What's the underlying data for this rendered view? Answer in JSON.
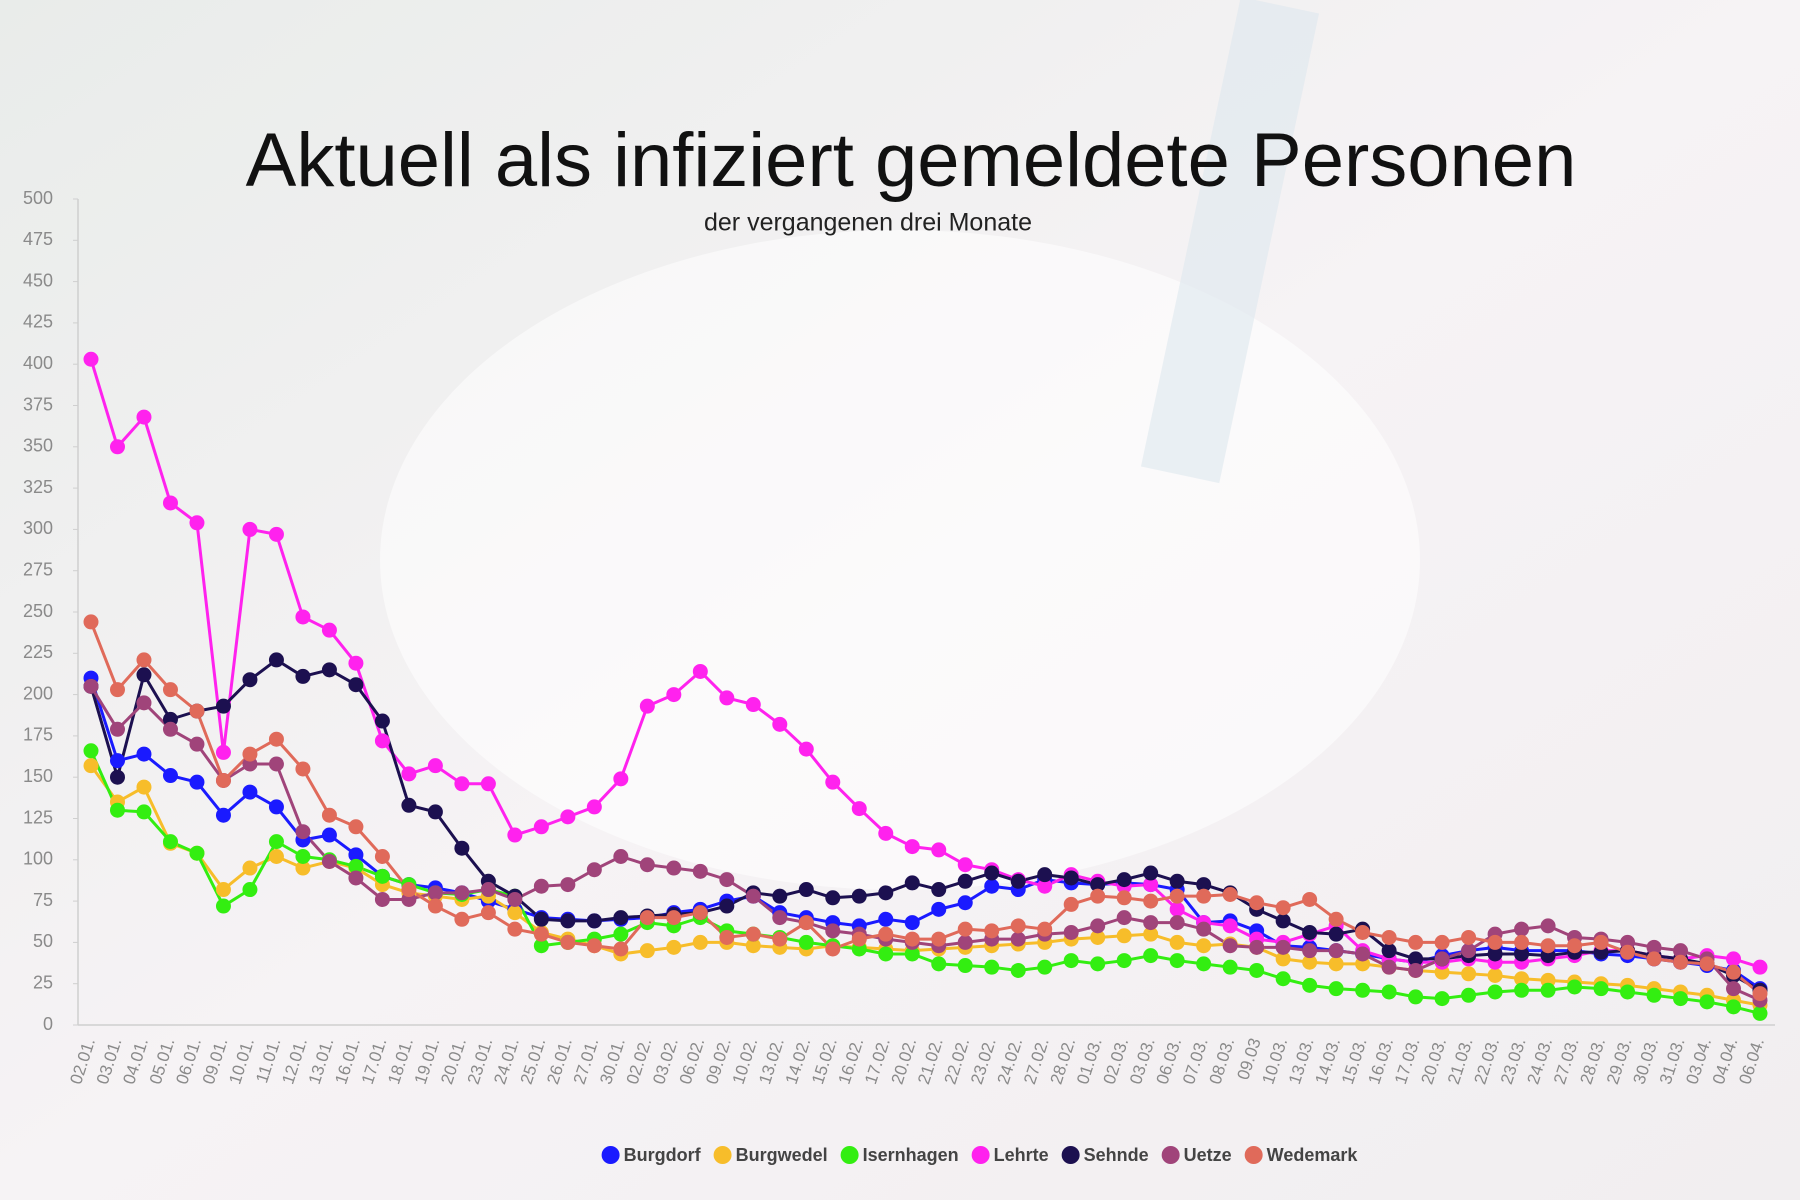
{
  "chart_data": {
    "type": "line",
    "title": "Aktuell als infiziert gemeldete Personen",
    "subtitle": "der vergangenen drei Monate",
    "categories": [
      "02.01.",
      "03.01.",
      "04.01.",
      "05.01.",
      "06.01.",
      "09.01.",
      "10.01.",
      "11.01.",
      "12.01.",
      "13.01.",
      "16.01.",
      "17.01.",
      "18.01.",
      "19.01.",
      "20.01.",
      "23.01.",
      "24.01.",
      "25.01.",
      "26.01.",
      "27.01.",
      "30.01.",
      "02.02.",
      "03.02.",
      "06.02.",
      "09.02.",
      "10.02.",
      "13.02.",
      "14.02.",
      "15.02.",
      "16.02.",
      "17.02.",
      "20.02.",
      "21.02.",
      "22.02.",
      "23.02.",
      "24.02.",
      "27.02.",
      "28.02.",
      "01.03.",
      "02.03.",
      "03.03.",
      "06.03.",
      "07.03.",
      "08.03.",
      "09.03",
      "10.03.",
      "13.03.",
      "14.03.",
      "15.03.",
      "16.03.",
      "17.03.",
      "20.03.",
      "21.03.",
      "22.03.",
      "23.03.",
      "24.03.",
      "27.03.",
      "28.03.",
      "29.03.",
      "30.03.",
      "31.03.",
      "03.04.",
      "04.04.",
      "06.04."
    ],
    "series": [
      {
        "name": "Burgdorf",
        "color": "#1a1aff",
        "values": [
          210,
          160,
          164,
          151,
          147,
          127,
          141,
          132,
          112,
          115,
          103,
          90,
          85,
          83,
          80,
          75,
          70,
          65,
          64,
          63,
          64,
          65,
          68,
          70,
          75,
          78,
          68,
          65,
          62,
          60,
          64,
          62,
          70,
          74,
          84,
          82,
          88,
          86,
          85,
          86,
          85,
          82,
          62,
          63,
          57,
          48,
          47,
          45,
          43,
          40,
          38,
          42,
          45,
          47,
          45,
          45,
          45,
          43,
          42,
          40,
          38,
          36,
          33,
          22
        ]
      },
      {
        "name": "Burgwedel",
        "color": "#f7bd2a",
        "values": [
          157,
          135,
          144,
          110,
          104,
          82,
          95,
          102,
          95,
          99,
          95,
          85,
          80,
          78,
          76,
          78,
          68,
          56,
          52,
          48,
          43,
          45,
          47,
          50,
          50,
          48,
          47,
          46,
          48,
          47,
          46,
          45,
          46,
          47,
          48,
          49,
          50,
          52,
          53,
          54,
          55,
          50,
          48,
          49,
          47,
          40,
          38,
          37,
          37,
          35,
          33,
          32,
          31,
          30,
          28,
          27,
          26,
          25,
          24,
          22,
          20,
          18,
          15,
          12
        ]
      },
      {
        "name": "Isernhagen",
        "color": "#33ee11",
        "values": [
          166,
          130,
          129,
          111,
          104,
          72,
          82,
          111,
          102,
          100,
          96,
          90,
          85,
          80,
          79,
          82,
          78,
          48,
          50,
          52,
          55,
          62,
          60,
          65,
          57,
          55,
          53,
          50,
          48,
          46,
          43,
          43,
          37,
          36,
          35,
          33,
          35,
          39,
          37,
          39,
          42,
          39,
          37,
          35,
          33,
          28,
          24,
          22,
          21,
          20,
          17,
          16,
          18,
          20,
          21,
          21,
          23,
          22,
          20,
          18,
          16,
          14,
          11,
          7
        ]
      },
      {
        "name": "Lehrte",
        "color": "#ff22ee",
        "values": [
          403,
          350,
          368,
          316,
          304,
          165,
          300,
          297,
          247,
          239,
          219,
          172,
          152,
          157,
          146,
          146,
          115,
          120,
          126,
          132,
          149,
          193,
          200,
          214,
          198,
          194,
          182,
          167,
          147,
          131,
          116,
          108,
          106,
          97,
          94,
          88,
          84,
          91,
          87,
          84,
          85,
          70,
          62,
          60,
          52,
          50,
          55,
          60,
          45,
          40,
          38,
          38,
          40,
          38,
          38,
          40,
          42,
          45,
          45,
          42,
          40,
          42,
          40,
          35
        ]
      },
      {
        "name": "Sehnde",
        "color": "#1c1050",
        "values": [
          205,
          150,
          212,
          185,
          190,
          193,
          209,
          221,
          211,
          215,
          206,
          184,
          133,
          129,
          107,
          87,
          78,
          64,
          63,
          63,
          65,
          66,
          67,
          68,
          72,
          80,
          78,
          82,
          77,
          78,
          80,
          86,
          82,
          87,
          92,
          87,
          91,
          89,
          85,
          88,
          92,
          87,
          85,
          80,
          70,
          63,
          56,
          55,
          58,
          45,
          40,
          40,
          42,
          43,
          43,
          42,
          44,
          44,
          45,
          42,
          40,
          37,
          30,
          21
        ]
      },
      {
        "name": "Uetze",
        "color": "#a0447a",
        "values": [
          205,
          179,
          195,
          179,
          170,
          148,
          158,
          158,
          117,
          99,
          89,
          76,
          76,
          80,
          80,
          82,
          76,
          84,
          85,
          94,
          102,
          97,
          95,
          93,
          88,
          78,
          65,
          62,
          57,
          55,
          52,
          50,
          48,
          50,
          52,
          52,
          55,
          56,
          60,
          65,
          62,
          62,
          58,
          48,
          47,
          47,
          45,
          45,
          43,
          35,
          33,
          40,
          45,
          55,
          58,
          60,
          53,
          52,
          50,
          47,
          45,
          40,
          22,
          15
        ]
      },
      {
        "name": "Wedemark",
        "color": "#e06a5a",
        "values": [
          244,
          203,
          221,
          203,
          190,
          148,
          164,
          173,
          155,
          127,
          120,
          102,
          82,
          72,
          64,
          68,
          58,
          55,
          50,
          48,
          46,
          65,
          65,
          68,
          53,
          55,
          52,
          62,
          46,
          52,
          55,
          52,
          52,
          58,
          57,
          60,
          58,
          73,
          78,
          77,
          75,
          78,
          78,
          79,
          74,
          71,
          76,
          64,
          56,
          53,
          50,
          50,
          53,
          50,
          50,
          48,
          48,
          50,
          44,
          40,
          38,
          37,
          32,
          19
        ]
      }
    ],
    "ylim": [
      0,
      500
    ],
    "yticks": [
      0,
      25,
      50,
      75,
      100,
      125,
      150,
      175,
      200,
      225,
      250,
      275,
      300,
      325,
      350,
      375,
      400,
      425,
      450,
      475,
      500
    ],
    "grid": false
  }
}
